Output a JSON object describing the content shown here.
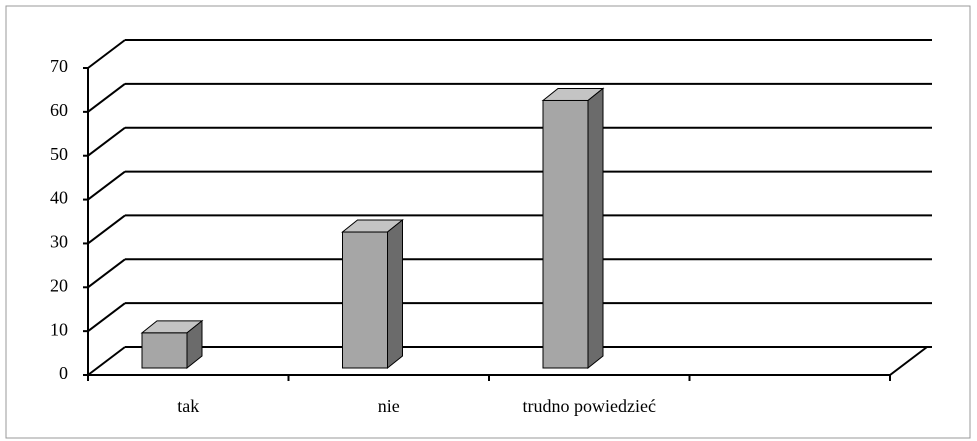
{
  "chart_data": {
    "type": "bar3d",
    "categories": [
      "tak",
      "nie",
      "trudno powiedzieć",
      null
    ],
    "values": [
      8,
      31,
      61,
      null
    ],
    "color": "#a6a6a6",
    "ylim": [
      0,
      70
    ],
    "yticks": [
      0,
      10,
      20,
      30,
      40,
      50,
      60,
      70
    ],
    "grid": true
  }
}
